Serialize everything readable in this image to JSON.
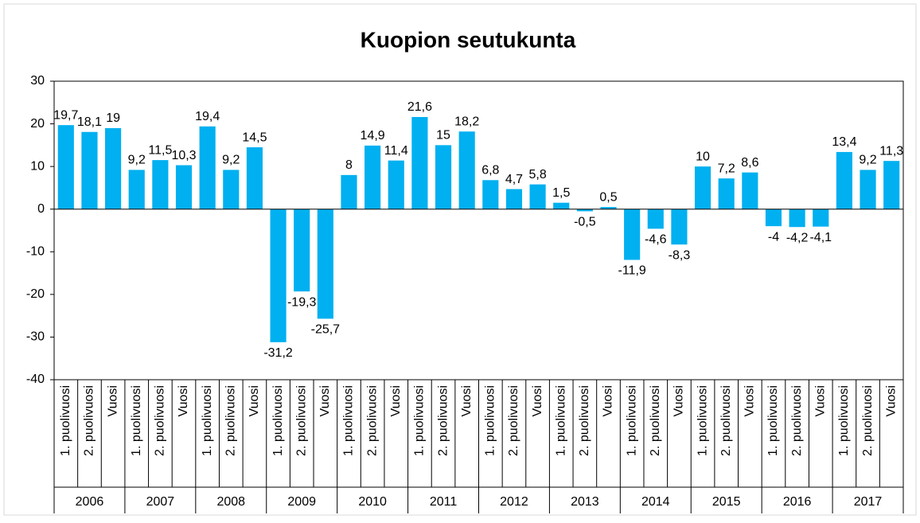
{
  "chart_data": {
    "type": "bar",
    "title": "Kuopion seutukunta",
    "categories": [
      "1. puolivuosi",
      "2. puolivuosi",
      "Vuosi",
      "1. puolivuosi",
      "2. puolivuosi",
      "Vuosi",
      "1. puolivuosi",
      "2. puolivuosi",
      "Vuosi",
      "1. puolivuosi",
      "2. puolivuosi",
      "Vuosi",
      "1. puolivuosi",
      "2. puolivuosi",
      "Vuosi",
      "1. puolivuosi",
      "2. puolivuosi",
      "Vuosi",
      "1. puolivuosi",
      "2. puolivuosi",
      "Vuosi",
      "1. puolivuosi",
      "2. puolivuosi",
      "Vuosi",
      "1. puolivuosi",
      "2. puolivuosi",
      "Vuosi",
      "1. puolivuosi",
      "2. puolivuosi",
      "Vuosi",
      "1. puolivuosi",
      "2. puolivuosi",
      "Vuosi",
      "1. puolivuosi",
      "2. puolivuosi",
      "Vuosi"
    ],
    "groups": [
      "2006",
      "2007",
      "2008",
      "2009",
      "2010",
      "2011",
      "2012",
      "2013",
      "2014",
      "2015",
      "2016",
      "2017"
    ],
    "values": [
      19.7,
      18.1,
      19,
      9.2,
      11.5,
      10.3,
      19.4,
      9.2,
      14.5,
      -31.2,
      -19.3,
      -25.7,
      8,
      14.9,
      11.4,
      21.6,
      15,
      18.2,
      6.8,
      4.7,
      5.8,
      1.5,
      -0.5,
      0.5,
      -11.9,
      -4.6,
      -8.3,
      10,
      7.2,
      8.6,
      -4,
      -4.2,
      -4.1,
      13.4,
      9.2,
      11.3
    ],
    "value_labels": [
      "19,7",
      "18,1",
      "19",
      "9,2",
      "11,5",
      "10,3",
      "19,4",
      "9,2",
      "14,5",
      "-31,2",
      "-19,3",
      "-25,7",
      "8",
      "14,9",
      "11,4",
      "21,6",
      "15",
      "18,2",
      "6,8",
      "4,7",
      "5,8",
      "1,5",
      "-0,5",
      "0,5",
      "-11,9",
      "-4,6",
      "-8,3",
      "10",
      "7,2",
      "8,6",
      "-4",
      "-4,2",
      "-4,1",
      "13,4",
      "9,2",
      "11,3"
    ],
    "color": "#00b0f0",
    "ylim": [
      -40,
      30
    ],
    "yticks": [
      -40,
      -30,
      -20,
      -10,
      0,
      10,
      20,
      30
    ],
    "grid": false
  }
}
